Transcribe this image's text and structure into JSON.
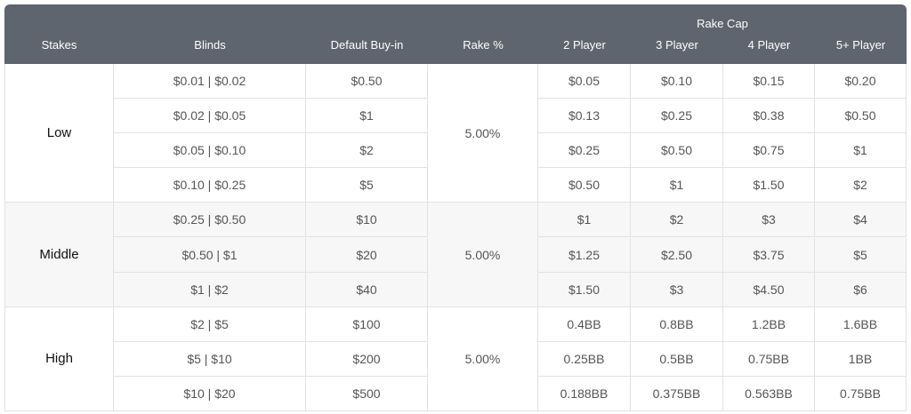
{
  "header": {
    "columns": [
      "Stakes",
      "Blinds",
      "Default Buy-in",
      "Rake %"
    ],
    "rake_cap": {
      "title": "Rake Cap",
      "columns": [
        "2 Player",
        "3 Player",
        "4 Player",
        "5+ Player"
      ]
    }
  },
  "groups": [
    {
      "stakes": "Low",
      "rake": "5.00%",
      "rows": [
        {
          "blinds": "$0.01 | $0.02",
          "buy_in": "$0.50",
          "caps": [
            "$0.05",
            "$0.10",
            "$0.15",
            "$0.20"
          ]
        },
        {
          "blinds": "$0.02 | $0.05",
          "buy_in": "$1",
          "caps": [
            "$0.13",
            "$0.25",
            "$0.38",
            "$0.50"
          ]
        },
        {
          "blinds": "$0.05 | $0.10",
          "buy_in": "$2",
          "caps": [
            "$0.25",
            "$0.50",
            "$0.75",
            "$1"
          ]
        },
        {
          "blinds": "$0.10 | $0.25",
          "buy_in": "$5",
          "caps": [
            "$0.50",
            "$1",
            "$1.50",
            "$2"
          ]
        }
      ]
    },
    {
      "stakes": "Middle",
      "rake": "5.00%",
      "rows": [
        {
          "blinds": "$0.25 | $0.50",
          "buy_in": "$10",
          "caps": [
            "$1",
            "$2",
            "$3",
            "$4"
          ]
        },
        {
          "blinds": "$0.50 | $1",
          "buy_in": "$20",
          "caps": [
            "$1.25",
            "$2.50",
            "$3.75",
            "$5"
          ]
        },
        {
          "blinds": "$1 | $2",
          "buy_in": "$40",
          "caps": [
            "$1.50",
            "$3",
            "$4.50",
            "$6"
          ]
        }
      ]
    },
    {
      "stakes": "High",
      "rake": "5.00%",
      "rows": [
        {
          "blinds": "$2 | $5",
          "buy_in": "$100",
          "caps": [
            "0.4BB",
            "0.8BB",
            "1.2BB",
            "1.6BB"
          ]
        },
        {
          "blinds": "$5 | $10",
          "buy_in": "$200",
          "caps": [
            "0.25BB",
            "0.5BB",
            "0.75BB",
            "1BB"
          ]
        },
        {
          "blinds": "$10 | $20",
          "buy_in": "$500",
          "caps": [
            "0.188BB",
            "0.375BB",
            "0.563BB",
            "0.75BB"
          ]
        }
      ]
    }
  ]
}
